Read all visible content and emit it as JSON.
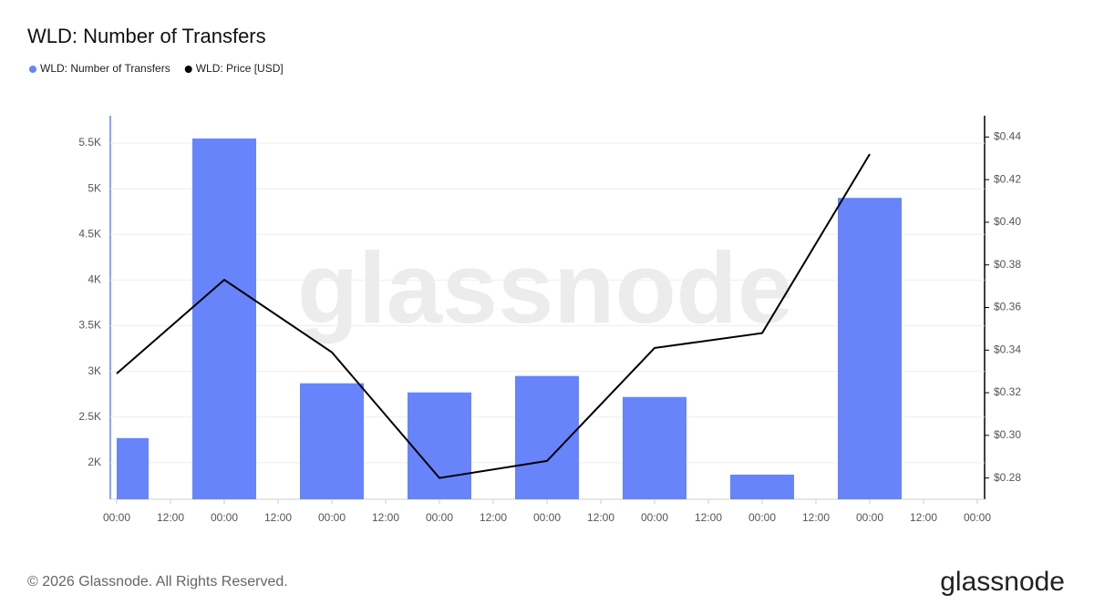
{
  "chart_data": {
    "type": "bar-line",
    "title": "WLD: Number of Transfers",
    "watermark": "glassnode",
    "footer": "© 2026 Glassnode. All Rights Reserved.",
    "logo": "glassnode",
    "x": [
      0,
      24,
      48,
      72,
      96,
      120,
      144,
      168
    ],
    "xlim": [
      0,
      192
    ],
    "xticks": [
      {
        "value": 0,
        "label": "00:00"
      },
      {
        "value": 12,
        "label": "12:00"
      },
      {
        "value": 24,
        "label": "00:00"
      },
      {
        "value": 36,
        "label": "12:00"
      },
      {
        "value": 48,
        "label": "00:00"
      },
      {
        "value": 60,
        "label": "12:00"
      },
      {
        "value": 72,
        "label": "00:00"
      },
      {
        "value": 84,
        "label": "12:00"
      },
      {
        "value": 96,
        "label": "00:00"
      },
      {
        "value": 108,
        "label": "12:00"
      },
      {
        "value": 120,
        "label": "00:00"
      },
      {
        "value": 132,
        "label": "12:00"
      },
      {
        "value": 144,
        "label": "00:00"
      },
      {
        "value": 156,
        "label": "12:00"
      },
      {
        "value": 168,
        "label": "00:00"
      },
      {
        "value": 180,
        "label": "12:00"
      },
      {
        "value": 192,
        "label": "00:00"
      }
    ],
    "ylim": [
      1600,
      5800
    ],
    "yticks": [
      {
        "value": 2000,
        "label": "2K"
      },
      {
        "value": 2500,
        "label": "2.5K"
      },
      {
        "value": 3000,
        "label": "3K"
      },
      {
        "value": 3500,
        "label": "3.5K"
      },
      {
        "value": 4000,
        "label": "4K"
      },
      {
        "value": 4500,
        "label": "4.5K"
      },
      {
        "value": 5000,
        "label": "5K"
      },
      {
        "value": 5500,
        "label": "5.5K"
      }
    ],
    "y2lim": [
      0.27,
      0.45
    ],
    "y2ticks": [
      {
        "value": 0.28,
        "label": "$0.28"
      },
      {
        "value": 0.3,
        "label": "$0.30"
      },
      {
        "value": 0.32,
        "label": "$0.32"
      },
      {
        "value": 0.34,
        "label": "$0.34"
      },
      {
        "value": 0.36,
        "label": "$0.36"
      },
      {
        "value": 0.38,
        "label": "$0.38"
      },
      {
        "value": 0.4,
        "label": "$0.40"
      },
      {
        "value": 0.42,
        "label": "$0.42"
      },
      {
        "value": 0.44,
        "label": "$0.44"
      }
    ],
    "grid": true,
    "series": [
      {
        "name": "WLD: Number of Transfers",
        "color": "#6784fb",
        "kind": "bar",
        "values": [
          2270,
          5550,
          2870,
          2770,
          2950,
          2720,
          1870,
          4900
        ]
      },
      {
        "name": "WLD: Price [USD]",
        "color": "#000000",
        "kind": "line",
        "axis": "y2",
        "values": [
          0.329,
          0.373,
          0.339,
          0.28,
          0.288,
          0.341,
          0.348,
          0.432
        ]
      }
    ]
  }
}
